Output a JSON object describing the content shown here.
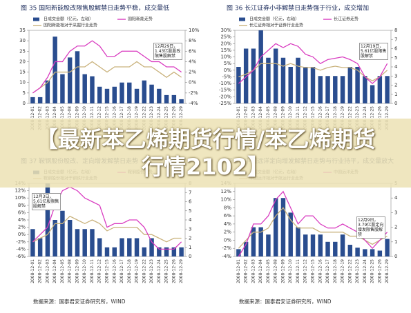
{
  "banner": {
    "title": "【最新苯乙烯期货行情/苯乙烯期货行情2102】"
  },
  "chart_data": [
    {
      "type": "bar",
      "title": "图 35  国阳新能股改限售股解禁日走势平稳，成交量低",
      "categories": [
        "2008-12-01",
        "2008-12-02",
        "2008-12-03",
        "2008-12-04",
        "2008-12-05",
        "2008-12-08",
        "2008-12-09",
        "2008-12-10",
        "2008-12-11",
        "2008-12-12",
        "2008-12-15",
        "2008-12-16",
        "2008-12-17",
        "2008-12-18",
        "2008-12-19",
        "2008-12-22",
        "2008-12-23",
        "2008-12-24",
        "2008-12-25",
        "2008-12-26",
        "2008-12-29"
      ],
      "series": [
        {
          "name": "日成交金额（亿元，左轴）",
          "type": "bar",
          "color": "#2a4d8f",
          "values": [
            3,
            3,
            11,
            32,
            14,
            22,
            25,
            14,
            13,
            8,
            7,
            8,
            10,
            10,
            7,
            11,
            9,
            7,
            4,
            4,
            2
          ]
        },
        {
          "name": "国阳新能相对于采掘行业走势",
          "type": "line",
          "color": "#c9b27c",
          "axis": "y2",
          "values": [
            -2,
            -1,
            0,
            2,
            2,
            2,
            3,
            3,
            4,
            3,
            2,
            3,
            3,
            3,
            4,
            3,
            3,
            2,
            1,
            2,
            1
          ]
        },
        {
          "name": "国阳新能走势",
          "type": "line",
          "color": "#d93cc0",
          "axis": "y2",
          "values": [
            -2,
            -1,
            1,
            4,
            4,
            6,
            7,
            7,
            8,
            7,
            5,
            5,
            6,
            6,
            6,
            5,
            4,
            4,
            3,
            3,
            2
          ]
        }
      ],
      "ylim": [
        0,
        35
      ],
      "yticks": [
        0,
        5,
        10,
        15,
        20,
        25,
        30,
        35
      ],
      "y2lim": [
        -4,
        10
      ],
      "y2ticks": [
        {
          "value": -4,
          "label": "-4%"
        },
        {
          "value": -2,
          "label": "-2%"
        },
        {
          "value": 0,
          "label": "0%"
        },
        {
          "value": 2,
          "label": "2%"
        },
        {
          "value": 4,
          "label": "4%"
        },
        {
          "value": 6,
          "label": "6%"
        },
        {
          "value": 8,
          "label": "8%"
        },
        {
          "value": 10,
          "label": "10%"
        }
      ],
      "annotation": "12月29日，1.43亿股股改限售股解禁"
    },
    {
      "type": "bar",
      "title": "图 36  长江证券小非解禁日走势强于行业，成交增加",
      "categories": [
        "2008-12-01",
        "2008-12-02",
        "2008-12-03",
        "2008-12-04",
        "2008-12-05",
        "2008-12-08",
        "2008-12-09",
        "2008-12-10",
        "2008-12-11",
        "2008-12-12",
        "2008-12-15",
        "2008-12-16",
        "2008-12-17",
        "2008-12-18",
        "2008-12-19",
        "2008-12-22",
        "2008-12-23",
        "2008-12-24",
        "2008-12-25",
        "2008-12-26",
        "2008-12-29"
      ],
      "series": [
        {
          "name": "日成交金额（亿元，右轴）",
          "type": "bar",
          "color": "#2a4d8f",
          "axis": "y2",
          "values": [
            4,
            6,
            6,
            8,
            5,
            6,
            5,
            4,
            5,
            4,
            4,
            3,
            3,
            3,
            3,
            4,
            4,
            3,
            2,
            3,
            3
          ]
        },
        {
          "name": "长江证券相对于证券行业走势",
          "type": "line",
          "color": "#c9b27c",
          "values": [
            -5,
            -3,
            0,
            5,
            5,
            5,
            3,
            5,
            3,
            2,
            2,
            0,
            2,
            3,
            2,
            2,
            0,
            -5,
            -8,
            -5,
            0
          ]
        },
        {
          "name": "长江证券走势",
          "type": "line",
          "color": "#d93cc0",
          "values": [
            -10,
            -5,
            0,
            10,
            15,
            20,
            17,
            20,
            18,
            12,
            10,
            5,
            8,
            9,
            10,
            8,
            5,
            -5,
            -10,
            -5,
            5
          ]
        }
      ],
      "ylim": [
        -25,
        30
      ],
      "yticks": [
        {
          "value": -25,
          "label": "-25%"
        },
        {
          "value": -20,
          "label": "-20%"
        },
        {
          "value": -15,
          "label": "-15%"
        },
        {
          "value": -10,
          "label": "-10%"
        },
        {
          "value": -5,
          "label": "-5%"
        },
        {
          "value": 0,
          "label": "0%"
        },
        {
          "value": 5,
          "label": "5%"
        },
        {
          "value": 10,
          "label": "10%"
        },
        {
          "value": 15,
          "label": "15%"
        },
        {
          "value": 20,
          "label": "20%"
        },
        {
          "value": 25,
          "label": "25%"
        },
        {
          "value": 30,
          "label": "30%"
        }
      ],
      "y2lim": [
        0,
        8
      ],
      "y2ticks": [
        0,
        1,
        2,
        3,
        4,
        5,
        6,
        7,
        8
      ],
      "annotation": "12月19日，5.61亿股限售股解禁"
    },
    {
      "type": "bar",
      "title": "图 37  鞍钢股份股改、定向增发解禁日走势",
      "categories": [
        "2008-12-01",
        "2008-12-02",
        "2008-12-03",
        "2008-12-04",
        "2008-12-05",
        "2008-12-08",
        "2008-12-09",
        "2008-12-10",
        "2008-12-11",
        "2008-12-12",
        "2008-12-15",
        "2008-12-16",
        "2008-12-17",
        "2008-12-18",
        "2008-12-19",
        "2008-12-22",
        "2008-12-23",
        "2008-12-24",
        "2008-12-25",
        "2008-12-26",
        "2008-12-29"
      ],
      "series": [
        {
          "name": "日成交金额（亿元，右轴）",
          "type": "bar",
          "color": "#2a4d8f",
          "axis": "y2",
          "values": [
            3,
            2,
            8,
            4,
            5,
            4,
            3,
            3,
            3,
            2,
            1,
            1,
            2,
            2,
            2,
            1,
            2,
            1,
            1,
            1,
            1
          ]
        },
        {
          "name": "鞍钢股份相对于钢铁行业走势",
          "type": "line",
          "color": "#c9b27c",
          "values": [
            -2,
            -1,
            0,
            3,
            3,
            5,
            4,
            3,
            4,
            3,
            1,
            2,
            2,
            2,
            2,
            0,
            0,
            -1,
            -2,
            -1,
            -1
          ]
        },
        {
          "name": "鞍钢股份走势",
          "type": "line",
          "color": "#d93cc0",
          "values": [
            -2,
            0,
            2,
            8,
            12,
            13,
            12,
            10,
            9,
            8,
            2,
            3,
            3,
            4,
            4,
            2,
            -2,
            -4,
            -4,
            -4,
            -2
          ]
        }
      ],
      "ylim": [
        -6,
        14
      ],
      "yticks": [
        {
          "value": -6,
          "label": "-6%"
        },
        {
          "value": -4,
          "label": "-4%"
        },
        {
          "value": -2,
          "label": "-2%"
        },
        {
          "value": 0,
          "label": "0%"
        },
        {
          "value": 2,
          "label": "2%"
        },
        {
          "value": 4,
          "label": "4%"
        },
        {
          "value": 6,
          "label": "6%"
        },
        {
          "value": 8,
          "label": "8%"
        },
        {
          "value": 10,
          "label": "10%"
        },
        {
          "value": 12,
          "label": "12%"
        },
        {
          "value": 14,
          "label": "14%"
        }
      ],
      "y2lim": [
        0,
        8
      ],
      "y2ticks": [
        0,
        1,
        2,
        3,
        4,
        5,
        6,
        7,
        8
      ],
      "annotation": "12月3日，5.61亿股限售股解禁",
      "source": "数据来源：国泰君安证券研究所，WIND"
    },
    {
      "type": "bar",
      "title": "图 38  中国远洋定向增发解禁日走势与行业持平，成交量放大",
      "categories": [
        "2008-12-01",
        "2008-12-02",
        "2008-12-03",
        "2008-12-04",
        "2008-12-05",
        "2008-12-08",
        "2008-12-09",
        "2008-12-10",
        "2008-12-11",
        "2008-12-12",
        "2008-12-15",
        "2008-12-16",
        "2008-12-17",
        "2008-12-18",
        "2008-12-19",
        "2008-12-22",
        "2008-12-23",
        "2008-12-24",
        "2008-12-25",
        "2008-12-26",
        "2008-12-29"
      ],
      "series": [
        {
          "name": "日成交金额（亿元，右轴）",
          "type": "bar",
          "color": "#2a4d8f",
          "axis": "y2",
          "values": [
            0.5,
            1,
            2,
            2,
            1.5,
            4,
            4,
            3,
            2,
            1.5,
            1.5,
            1.5,
            1,
            1,
            1.5,
            0.8,
            0.6,
            0.5,
            0.5,
            0.4,
            1.2
          ]
        },
        {
          "name": "中国远洋相对于航运行业走势",
          "type": "line",
          "color": "#c9b27c",
          "values": [
            -2,
            0,
            2,
            2,
            3,
            6,
            8,
            5,
            3,
            3,
            3,
            2,
            2,
            2,
            2,
            1,
            1,
            0,
            -1,
            0,
            1
          ]
        },
        {
          "name": "中国远洋走势",
          "type": "line",
          "color": "#d93cc0",
          "values": [
            -4,
            -1,
            4,
            4,
            6,
            10,
            12,
            8,
            4,
            6,
            6,
            4,
            3,
            3,
            4,
            3,
            2,
            0,
            -2,
            0,
            2
          ]
        }
      ],
      "ylim": [
        -4,
        14
      ],
      "yticks": [
        {
          "value": -4,
          "label": "-4%"
        },
        {
          "value": -2,
          "label": "-2%"
        },
        {
          "value": 0,
          "label": "0%"
        },
        {
          "value": 2,
          "label": "2%"
        },
        {
          "value": 4,
          "label": "4%"
        },
        {
          "value": 6,
          "label": "6%"
        },
        {
          "value": 8,
          "label": "8%"
        },
        {
          "value": 10,
          "label": "10%"
        },
        {
          "value": 12,
          "label": "12%"
        },
        {
          "value": 14,
          "label": "14%"
        }
      ],
      "y2lim": [
        0,
        5
      ],
      "y2ticks": [
        0,
        1,
        2,
        3,
        4,
        5
      ],
      "annotation": "12月9日，3.79亿股定向增发限售股解禁",
      "source": "数据来源：国泰君安证券研究所，WIND"
    }
  ]
}
